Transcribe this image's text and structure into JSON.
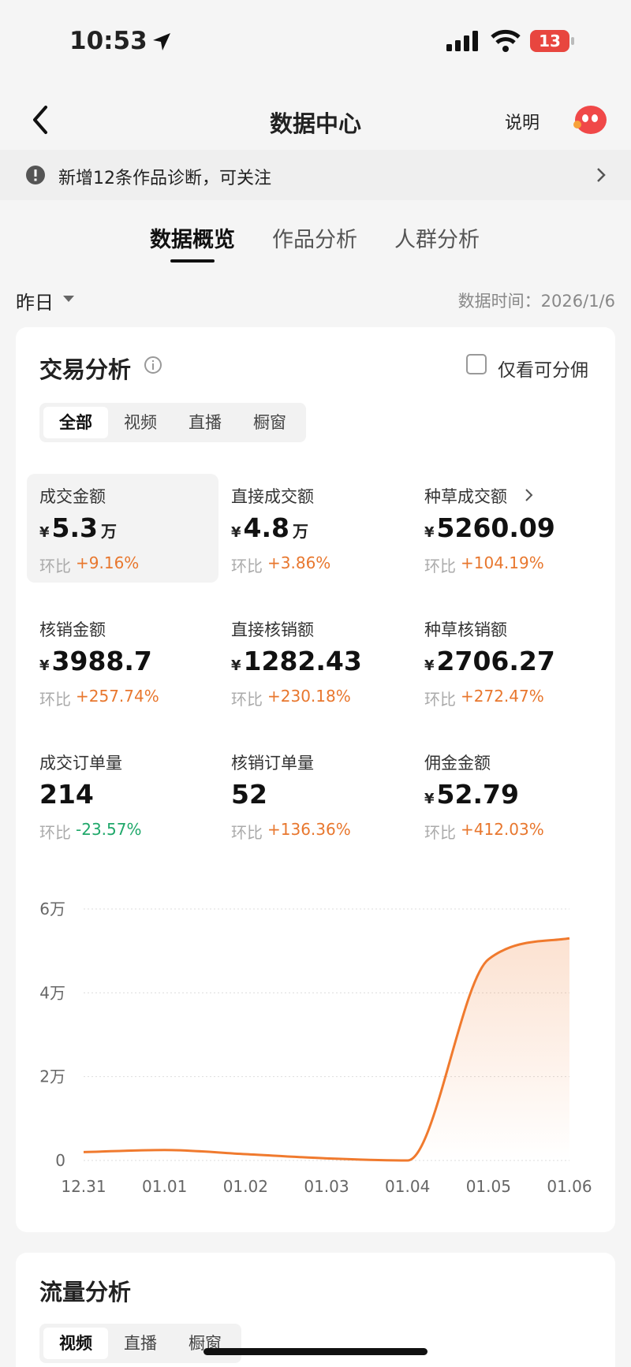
{
  "status_bar": {
    "time": "10:53",
    "battery": "13"
  },
  "nav": {
    "title": "数据中心",
    "help": "说明"
  },
  "notice": {
    "text": "新增12条作品诊断，可关注"
  },
  "tabs": [
    "数据概览",
    "作品分析",
    "人群分析"
  ],
  "date": {
    "range": "昨日",
    "data_time": "数据时间：2026/1/6"
  },
  "trade_card": {
    "title": "交易分析",
    "checkbox": "仅看可分佣",
    "segments": [
      "全部",
      "视频",
      "直播",
      "橱窗"
    ],
    "metrics": [
      {
        "label": "成交金额",
        "currency": "¥",
        "value": "5.3",
        "unit": "万",
        "change_label": "环比",
        "change": "+9.16%"
      },
      {
        "label": "直接成交额",
        "currency": "¥",
        "value": "4.8",
        "unit": "万",
        "change_label": "环比",
        "change": "+3.86%"
      },
      {
        "label": "种草成交额",
        "currency": "¥",
        "value": "5260.09",
        "change_label": "环比",
        "change": "+104.19%"
      },
      {
        "label": "核销金额",
        "currency": "¥",
        "value": "3988.7",
        "change_label": "环比",
        "change": "+257.74%"
      },
      {
        "label": "直接核销额",
        "currency": "¥",
        "value": "1282.43",
        "change_label": "环比",
        "change": "+230.18%"
      },
      {
        "label": "种草核销额",
        "currency": "¥",
        "value": "2706.27",
        "change_label": "环比",
        "change": "+272.47%"
      },
      {
        "label": "成交订单量",
        "value": "214",
        "change_label": "环比",
        "change": "-23.57%"
      },
      {
        "label": "核销订单量",
        "value": "52",
        "change_label": "环比",
        "change": "+136.36%"
      },
      {
        "label": "佣金金额",
        "currency": "¥",
        "value": "52.79",
        "change_label": "环比",
        "change": "+412.03%"
      }
    ]
  },
  "chart_data": {
    "type": "line",
    "categories": [
      "12.31",
      "01.01",
      "01.02",
      "01.03",
      "01.04",
      "01.05",
      "01.06"
    ],
    "values": [
      2000,
      2500,
      1500,
      500,
      0,
      48000,
      53000
    ],
    "color": "#f07a2e",
    "ylim": [
      0,
      60000
    ],
    "yticks": [
      0,
      {
        "value": 20000,
        "label": "2万"
      },
      {
        "value": 40000,
        "label": "4万"
      },
      {
        "value": 60000,
        "label": "6万"
      }
    ],
    "grid": true
  },
  "traffic_card": {
    "title": "流量分析",
    "segments": [
      "视频",
      "直播",
      "橱窗"
    ]
  }
}
